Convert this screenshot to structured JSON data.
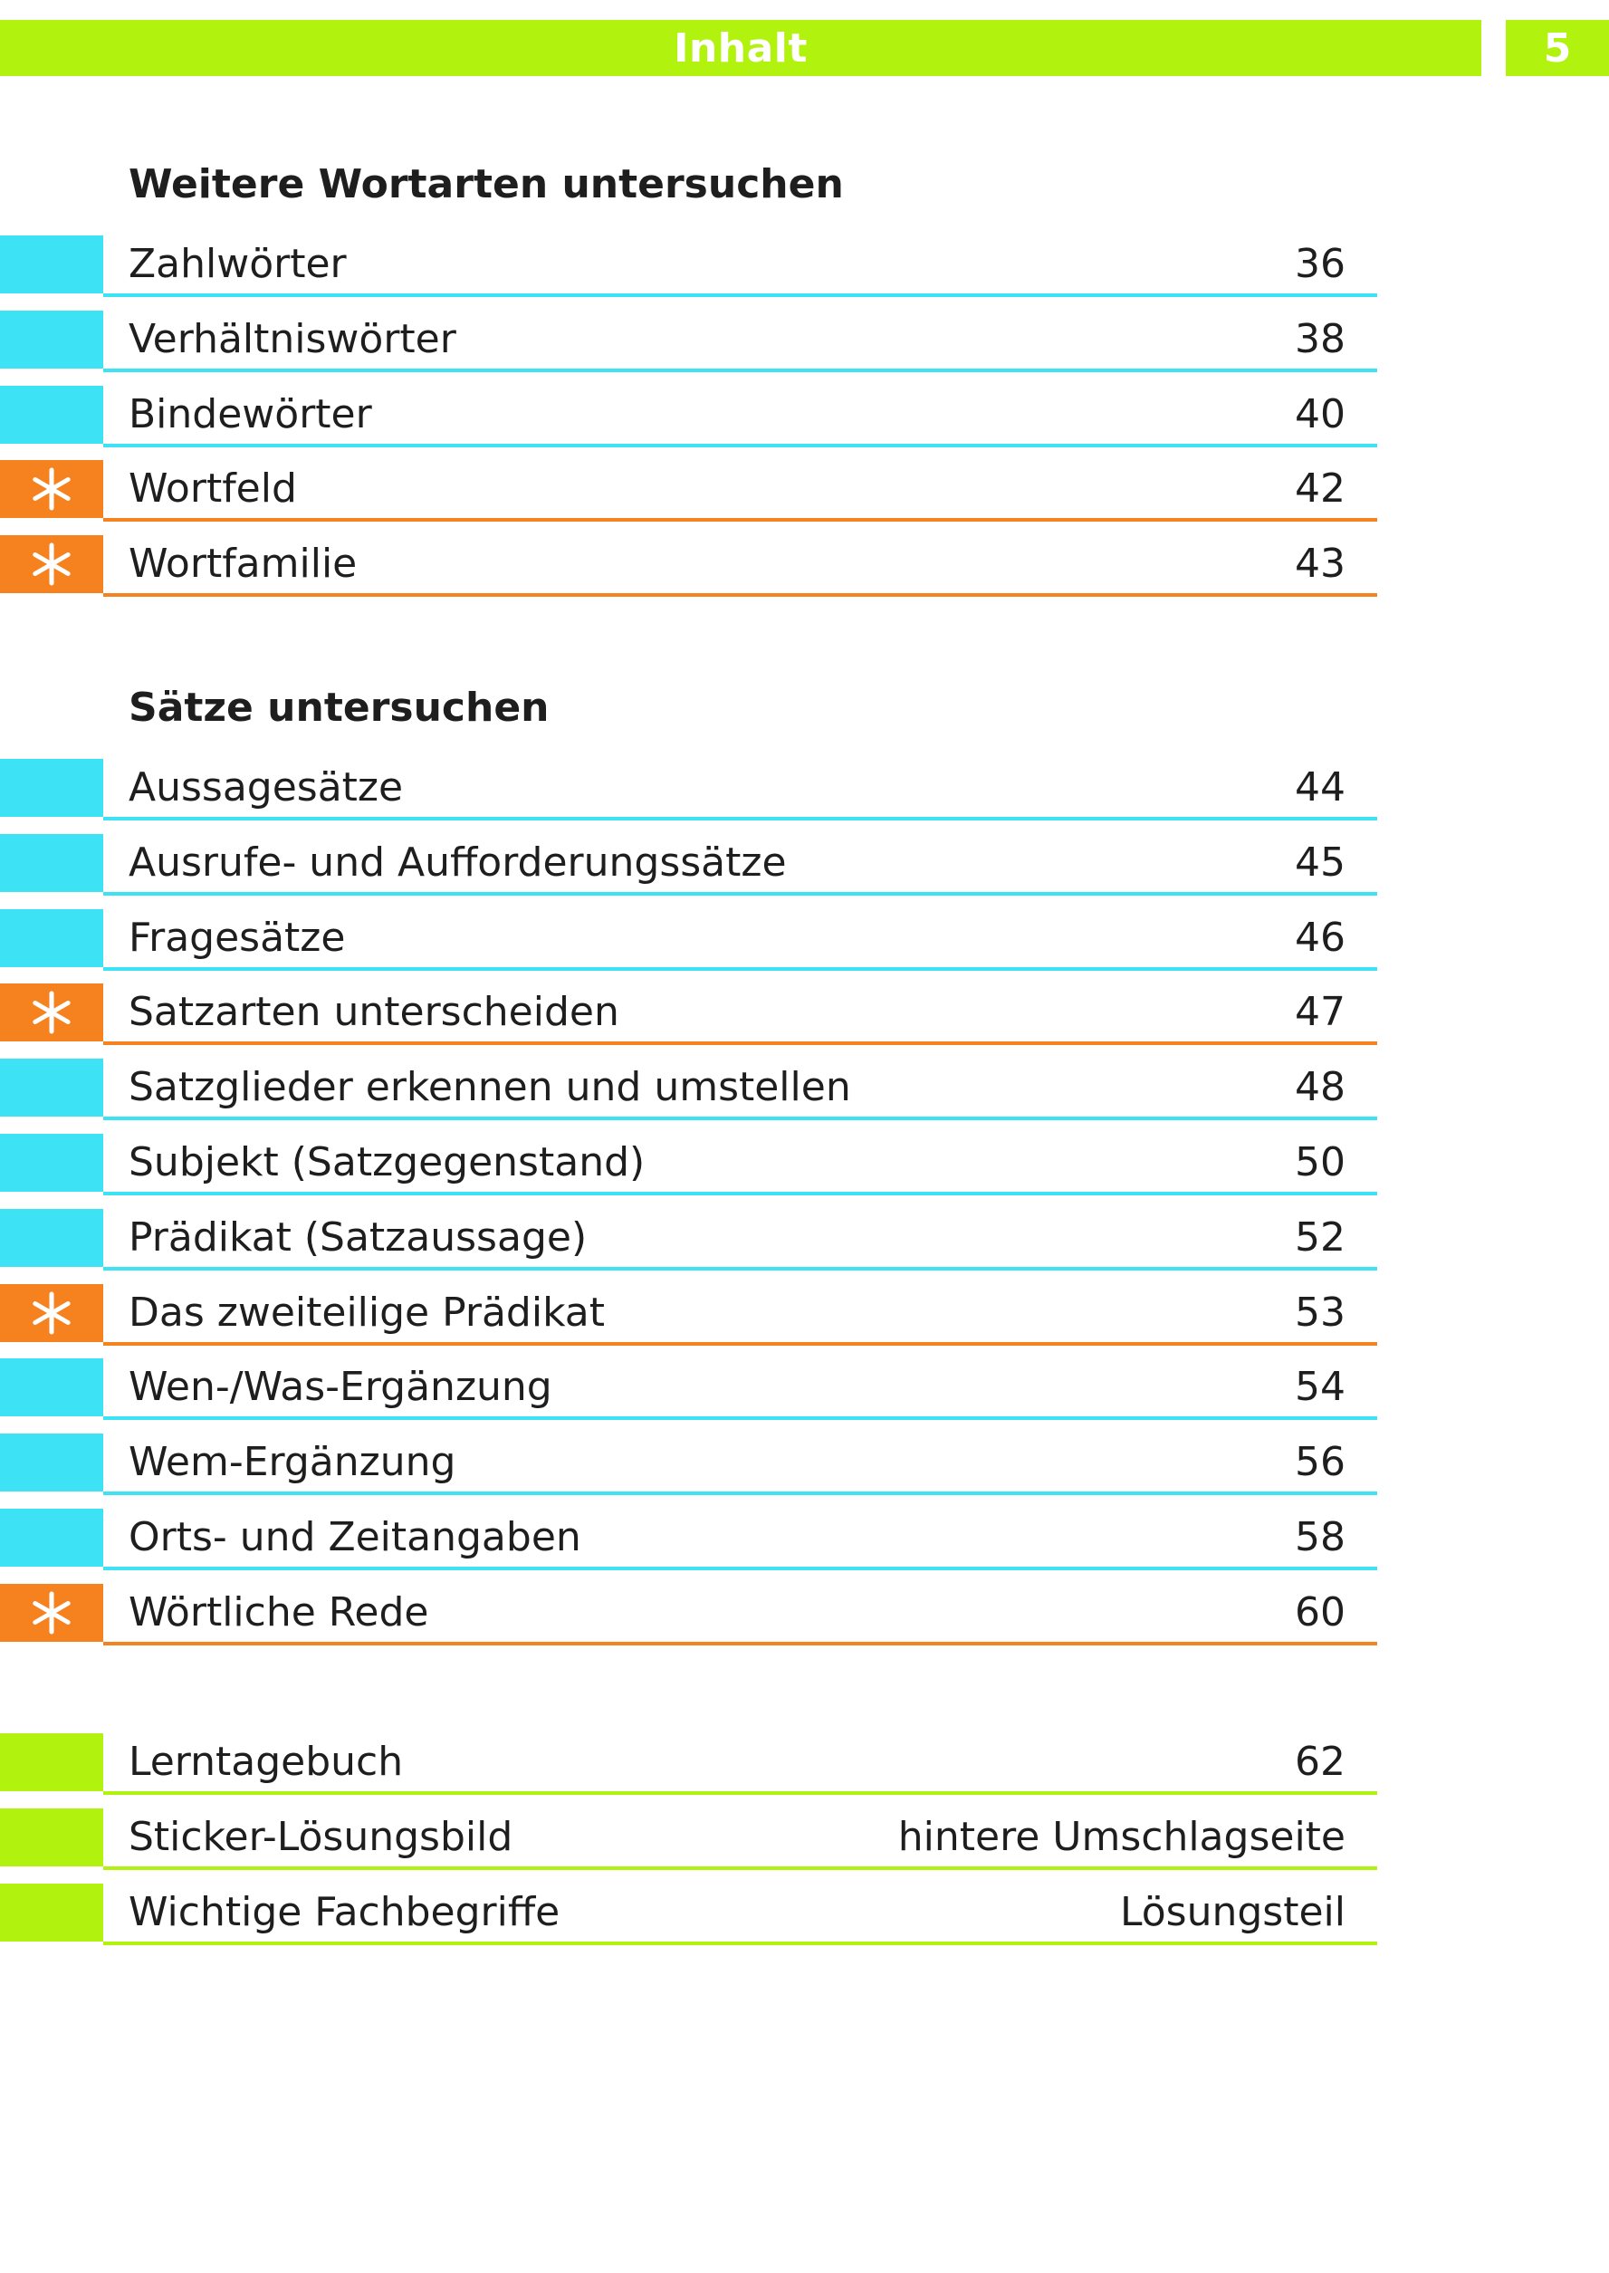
{
  "header": {
    "title": "Inhalt",
    "page_number": "5"
  },
  "colors": {
    "header": "#b2f20f",
    "cyan": "#3de3f5",
    "orange": "#f5821f",
    "green": "#b2f20f"
  },
  "sections": [
    {
      "title": "Weitere Wortarten untersuchen",
      "entries": [
        {
          "label": "Zahlwörter",
          "page": "36",
          "marker": "cyan"
        },
        {
          "label": "Verhältniswörter",
          "page": "38",
          "marker": "cyan"
        },
        {
          "label": "Bindewörter",
          "page": "40",
          "marker": "cyan"
        },
        {
          "label": "Wortfeld",
          "page": "42",
          "marker": "orange-star"
        },
        {
          "label": "Wortfamilie",
          "page": "43",
          "marker": "orange-star"
        }
      ]
    },
    {
      "title": "Sätze untersuchen",
      "entries": [
        {
          "label": "Aussagesätze",
          "page": "44",
          "marker": "cyan"
        },
        {
          "label": "Ausrufe- und Aufforderungssätze",
          "page": "45",
          "marker": "cyan"
        },
        {
          "label": "Fragesätze",
          "page": "46",
          "marker": "cyan"
        },
        {
          "label": "Satzarten unterscheiden",
          "page": "47",
          "marker": "orange-star"
        },
        {
          "label": "Satzglieder erkennen und umstellen",
          "page": "48",
          "marker": "cyan"
        },
        {
          "label": "Subjekt (Satzgegenstand)",
          "page": "50",
          "marker": "cyan"
        },
        {
          "label": "Prädikat (Satzaussage)",
          "page": "52",
          "marker": "cyan"
        },
        {
          "label": "Das zweiteilige Prädikat",
          "page": "53",
          "marker": "orange-star"
        },
        {
          "label": "Wen-/Was-Ergänzung",
          "page": "54",
          "marker": "cyan"
        },
        {
          "label": "Wem-Ergänzung",
          "page": "56",
          "marker": "cyan"
        },
        {
          "label": "Orts- und Zeitangaben",
          "page": "58",
          "marker": "cyan"
        },
        {
          "label": "Wörtliche Rede",
          "page": "60",
          "marker": "orange-star"
        }
      ]
    },
    {
      "title": "",
      "entries": [
        {
          "label": "Lerntagebuch",
          "page": "62",
          "marker": "green"
        },
        {
          "label": "Sticker-Lösungsbild",
          "page": "hintere Umschlagseite",
          "marker": "green"
        },
        {
          "label": "Wichtige Fachbegriffe",
          "page": "Lösungsteil",
          "marker": "green"
        }
      ]
    }
  ]
}
